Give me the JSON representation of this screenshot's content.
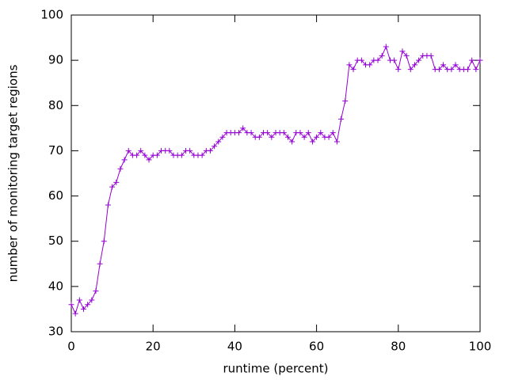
{
  "chart_data": {
    "type": "line",
    "xlabel": "runtime (percent)",
    "ylabel": "number of monitoring target regions",
    "x": [
      0,
      1,
      2,
      3,
      4,
      5,
      6,
      7,
      8,
      9,
      10,
      11,
      12,
      13,
      14,
      15,
      16,
      17,
      18,
      19,
      20,
      21,
      22,
      23,
      24,
      25,
      26,
      27,
      28,
      29,
      30,
      31,
      32,
      33,
      34,
      35,
      36,
      37,
      38,
      39,
      40,
      41,
      42,
      43,
      44,
      45,
      46,
      47,
      48,
      49,
      50,
      51,
      52,
      53,
      54,
      55,
      56,
      57,
      58,
      59,
      60,
      61,
      62,
      63,
      64,
      65,
      66,
      67,
      68,
      69,
      70,
      71,
      72,
      73,
      74,
      75,
      76,
      77,
      78,
      79,
      80,
      81,
      82,
      83,
      84,
      85,
      86,
      87,
      88,
      89,
      90,
      91,
      92,
      93,
      94,
      95,
      96,
      97,
      98,
      99,
      100
    ],
    "series": [
      {
        "color": "#9400d3",
        "values": [
          36,
          34,
          37,
          35,
          36,
          37,
          39,
          45,
          50,
          58,
          62,
          63,
          66,
          68,
          70,
          69,
          69,
          70,
          69,
          68,
          69,
          69,
          70,
          70,
          70,
          69,
          69,
          69,
          70,
          70,
          69,
          69,
          69,
          70,
          70,
          71,
          72,
          73,
          74,
          74,
          74,
          74,
          75,
          74,
          74,
          73,
          73,
          74,
          74,
          73,
          74,
          74,
          74,
          73,
          72,
          74,
          74,
          73,
          74,
          72,
          73,
          74,
          73,
          73,
          74,
          72,
          77,
          81,
          89,
          88,
          90,
          90,
          89,
          89,
          90,
          90,
          91,
          93,
          90,
          90,
          88,
          92,
          91,
          88,
          89,
          90,
          91,
          91,
          91,
          88,
          88,
          89,
          88,
          88,
          89,
          88,
          88,
          88,
          90,
          88,
          90
        ]
      }
    ],
    "xlim": [
      0,
      100
    ],
    "ylim": [
      30,
      100
    ],
    "xticks": [
      0,
      20,
      40,
      60,
      80,
      100
    ],
    "yticks": [
      30,
      40,
      50,
      60,
      70,
      80,
      90,
      100
    ],
    "grid": false
  }
}
